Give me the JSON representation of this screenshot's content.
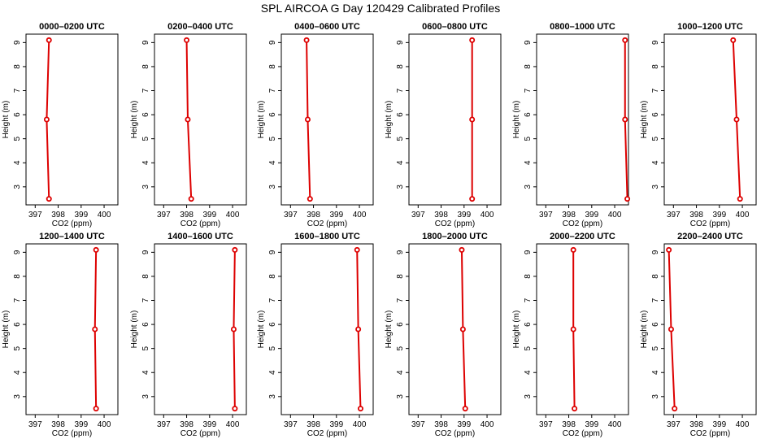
{
  "figure_title": "SPL AIRCOA G  Day 120429  Calibrated Profiles",
  "colors": {
    "series": "#dd0000",
    "axes": "#000000",
    "background": "#ffffff"
  },
  "chart_data": [
    {
      "type": "line",
      "title": "0000–0200 UTC",
      "xlabel": "CO2 (ppm)",
      "ylabel": "Height (m)",
      "xlim": [
        396.6,
        400.6
      ],
      "ylim": [
        2.25,
        9.35
      ],
      "xticks": [
        397,
        398,
        399,
        400
      ],
      "yticks": [
        3,
        4,
        5,
        6,
        7,
        8,
        9
      ],
      "grid": false,
      "x": [
        397.6,
        397.5,
        397.6
      ],
      "y": [
        2.5,
        5.8,
        9.1
      ]
    },
    {
      "type": "line",
      "title": "0200–0400 UTC",
      "xlabel": "CO2 (ppm)",
      "ylabel": "Height (m)",
      "xlim": [
        396.6,
        400.6
      ],
      "ylim": [
        2.25,
        9.35
      ],
      "xticks": [
        397,
        398,
        399,
        400
      ],
      "yticks": [
        3,
        4,
        5,
        6,
        7,
        8,
        9
      ],
      "grid": false,
      "x": [
        398.2,
        398.05,
        398.0
      ],
      "y": [
        2.5,
        5.8,
        9.1
      ]
    },
    {
      "type": "line",
      "title": "0400–0600 UTC",
      "xlabel": "CO2 (ppm)",
      "ylabel": "Height (m)",
      "xlim": [
        396.6,
        400.6
      ],
      "ylim": [
        2.25,
        9.35
      ],
      "xticks": [
        397,
        398,
        399,
        400
      ],
      "yticks": [
        3,
        4,
        5,
        6,
        7,
        8,
        9
      ],
      "grid": false,
      "x": [
        397.85,
        397.75,
        397.7
      ],
      "y": [
        2.5,
        5.8,
        9.1
      ]
    },
    {
      "type": "line",
      "title": "0600–0800 UTC",
      "xlabel": "CO2 (ppm)",
      "ylabel": "Height (m)",
      "xlim": [
        396.6,
        400.6
      ],
      "ylim": [
        2.25,
        9.35
      ],
      "xticks": [
        397,
        398,
        399,
        400
      ],
      "yticks": [
        3,
        4,
        5,
        6,
        7,
        8,
        9
      ],
      "grid": false,
      "x": [
        399.35,
        399.35,
        399.35
      ],
      "y": [
        2.5,
        5.8,
        9.1
      ]
    },
    {
      "type": "line",
      "title": "0800–1000 UTC",
      "xlabel": "CO2 (ppm)",
      "ylabel": "Height (m)",
      "xlim": [
        396.6,
        400.6
      ],
      "ylim": [
        2.25,
        9.35
      ],
      "xticks": [
        397,
        398,
        399,
        400
      ],
      "yticks": [
        3,
        4,
        5,
        6,
        7,
        8,
        9
      ],
      "grid": false,
      "x": [
        400.55,
        400.45,
        400.45
      ],
      "y": [
        2.5,
        5.8,
        9.1
      ]
    },
    {
      "type": "line",
      "title": "1000–1200 UTC",
      "xlabel": "CO2 (ppm)",
      "ylabel": "Height (m)",
      "xlim": [
        396.6,
        400.6
      ],
      "ylim": [
        2.25,
        9.35
      ],
      "xticks": [
        397,
        398,
        399,
        400
      ],
      "yticks": [
        3,
        4,
        5,
        6,
        7,
        8,
        9
      ],
      "grid": false,
      "x": [
        399.9,
        399.75,
        399.6
      ],
      "y": [
        2.5,
        5.8,
        9.1
      ]
    },
    {
      "type": "line",
      "title": "1200–1400 UTC",
      "xlabel": "CO2 (ppm)",
      "ylabel": "Height (m)",
      "xlim": [
        396.6,
        400.6
      ],
      "ylim": [
        2.25,
        9.35
      ],
      "xticks": [
        397,
        398,
        399,
        400
      ],
      "yticks": [
        3,
        4,
        5,
        6,
        7,
        8,
        9
      ],
      "grid": false,
      "x": [
        399.65,
        399.6,
        399.65
      ],
      "y": [
        2.5,
        5.8,
        9.1
      ]
    },
    {
      "type": "line",
      "title": "1400–1600 UTC",
      "xlabel": "CO2 (ppm)",
      "ylabel": "Height (m)",
      "xlim": [
        396.6,
        400.6
      ],
      "ylim": [
        2.25,
        9.35
      ],
      "xticks": [
        397,
        398,
        399,
        400
      ],
      "yticks": [
        3,
        4,
        5,
        6,
        7,
        8,
        9
      ],
      "grid": false,
      "x": [
        400.1,
        400.05,
        400.1
      ],
      "y": [
        2.5,
        5.8,
        9.1
      ]
    },
    {
      "type": "line",
      "title": "1600–1800 UTC",
      "xlabel": "CO2 (ppm)",
      "ylabel": "Height (m)",
      "xlim": [
        396.6,
        400.6
      ],
      "ylim": [
        2.25,
        9.35
      ],
      "xticks": [
        397,
        398,
        399,
        400
      ],
      "yticks": [
        3,
        4,
        5,
        6,
        7,
        8,
        9
      ],
      "grid": false,
      "x": [
        400.05,
        399.95,
        399.9
      ],
      "y": [
        2.5,
        5.8,
        9.1
      ]
    },
    {
      "type": "line",
      "title": "1800–2000 UTC",
      "xlabel": "CO2 (ppm)",
      "ylabel": "Height (m)",
      "xlim": [
        396.6,
        400.6
      ],
      "ylim": [
        2.25,
        9.35
      ],
      "xticks": [
        397,
        398,
        399,
        400
      ],
      "yticks": [
        3,
        4,
        5,
        6,
        7,
        8,
        9
      ],
      "grid": false,
      "x": [
        399.05,
        398.95,
        398.9
      ],
      "y": [
        2.5,
        5.8,
        9.1
      ]
    },
    {
      "type": "line",
      "title": "2000–2200 UTC",
      "xlabel": "CO2 (ppm)",
      "ylabel": "Height (m)",
      "xlim": [
        396.6,
        400.6
      ],
      "ylim": [
        2.25,
        9.35
      ],
      "xticks": [
        397,
        398,
        399,
        400
      ],
      "yticks": [
        3,
        4,
        5,
        6,
        7,
        8,
        9
      ],
      "grid": false,
      "x": [
        398.25,
        398.2,
        398.2
      ],
      "y": [
        2.5,
        5.8,
        9.1
      ]
    },
    {
      "type": "line",
      "title": "2200–2400 UTC",
      "xlabel": "CO2 (ppm)",
      "ylabel": "Height (m)",
      "xlim": [
        396.6,
        400.6
      ],
      "ylim": [
        2.25,
        9.35
      ],
      "xticks": [
        397,
        398,
        399,
        400
      ],
      "yticks": [
        3,
        4,
        5,
        6,
        7,
        8,
        9
      ],
      "grid": false,
      "x": [
        397.05,
        396.9,
        396.8
      ],
      "y": [
        2.5,
        5.8,
        9.1
      ]
    }
  ]
}
